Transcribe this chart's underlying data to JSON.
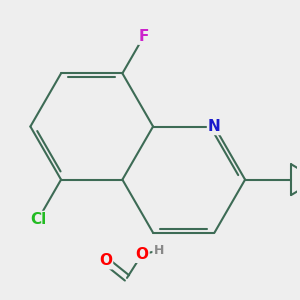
{
  "bg_color": "#eeeeee",
  "bond_color": "#3d6e5a",
  "bond_width": 1.5,
  "atom_colors": {
    "O": "#ff0000",
    "N": "#1a1acc",
    "Cl": "#22bb22",
    "F": "#cc22cc",
    "H": "#888888",
    "C": "#3d6e5a"
  },
  "font_size": 11
}
